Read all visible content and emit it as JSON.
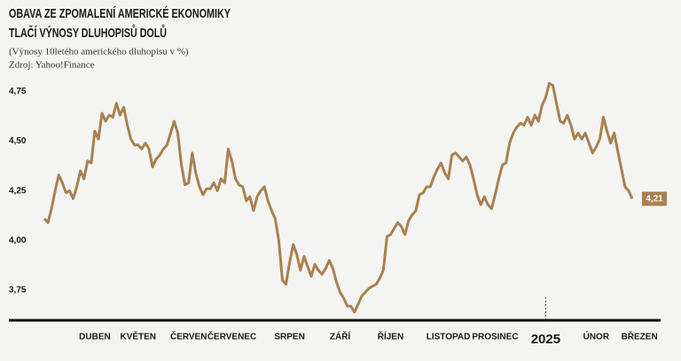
{
  "chart_data": {
    "type": "line",
    "title": [
      "OBAVA ZE ZPOMALENÍ AMERICKÉ EKONOMIKY",
      "TLAČÍ VÝNOSY DLUHOPISŮ DOLŮ"
    ],
    "subtitle": "(Výnosy 10letého amerického dluhopisu v %)",
    "source": "Zdroj: Yahoo!Finance",
    "color": "#a9804e",
    "values": [
      4.11,
      4.09,
      4.16,
      4.25,
      4.33,
      4.29,
      4.24,
      4.25,
      4.21,
      4.27,
      4.35,
      4.31,
      4.4,
      4.39,
      4.55,
      4.51,
      4.64,
      4.6,
      4.63,
      4.62,
      4.69,
      4.63,
      4.67,
      4.58,
      4.51,
      4.48,
      4.48,
      4.46,
      4.49,
      4.46,
      4.37,
      4.41,
      4.43,
      4.46,
      4.48,
      4.54,
      4.6,
      4.54,
      4.38,
      4.28,
      4.29,
      4.44,
      4.34,
      4.27,
      4.23,
      4.26,
      4.26,
      4.29,
      4.25,
      4.31,
      4.29,
      4.46,
      4.4,
      4.31,
      4.28,
      4.27,
      4.2,
      4.22,
      4.15,
      4.22,
      4.25,
      4.27,
      4.2,
      4.15,
      4.11,
      4.0,
      3.8,
      3.78,
      3.89,
      3.98,
      3.93,
      3.85,
      3.92,
      3.87,
      3.82,
      3.88,
      3.85,
      3.83,
      3.86,
      3.9,
      3.86,
      3.79,
      3.74,
      3.71,
      3.67,
      3.67,
      3.64,
      3.68,
      3.72,
      3.74,
      3.76,
      3.77,
      3.78,
      3.81,
      3.85,
      4.02,
      4.03,
      4.06,
      4.09,
      4.07,
      4.03,
      4.1,
      4.13,
      4.15,
      4.23,
      4.24,
      4.27,
      4.27,
      4.32,
      4.36,
      4.39,
      4.34,
      4.31,
      4.43,
      4.44,
      4.42,
      4.4,
      4.42,
      4.38,
      4.31,
      4.23,
      4.18,
      4.22,
      4.18,
      4.16,
      4.23,
      4.31,
      4.38,
      4.39,
      4.49,
      4.54,
      4.57,
      4.59,
      4.58,
      4.62,
      4.58,
      4.63,
      4.6,
      4.68,
      4.72,
      4.79,
      4.78,
      4.69,
      4.6,
      4.59,
      4.63,
      4.58,
      4.51,
      4.54,
      4.51,
      4.54,
      4.49,
      4.44,
      4.47,
      4.51,
      4.62,
      4.55,
      4.49,
      4.54,
      4.45,
      4.36,
      4.27,
      4.25,
      4.21
    ],
    "end_label": {
      "value": 4.21,
      "label": "4,21"
    },
    "xlim": [
      0,
      163
    ],
    "xticks": [
      {
        "value": 14,
        "label": "DUBEN"
      },
      {
        "value": 26,
        "label": "KVĚTEN"
      },
      {
        "value": 40,
        "label": "ČERVEN"
      },
      {
        "value": 52,
        "label": "ČERVENEC"
      },
      {
        "value": 68,
        "label": "SRPEN"
      },
      {
        "value": 82,
        "label": "ZÁŘÍ"
      },
      {
        "value": 96,
        "label": "ŘÍJEN"
      },
      {
        "value": 112,
        "label": "LISTOPAD"
      },
      {
        "value": 125,
        "label": "PROSINEC"
      },
      {
        "value": 153,
        "label": "ÚNOR"
      },
      {
        "value": 165,
        "label": "BŘEZEN"
      }
    ],
    "year_marker": {
      "value": 139,
      "label": "2025"
    },
    "ylim": [
      3.63,
      4.8
    ],
    "yticks": [
      {
        "value": 4.75,
        "label": "4,75"
      },
      {
        "value": 4.5,
        "label": "4,50"
      },
      {
        "value": 4.25,
        "label": "4,25"
      },
      {
        "value": 4.0,
        "label": "4,00"
      },
      {
        "value": 3.75,
        "label": "3,75"
      }
    ],
    "grid": false
  }
}
